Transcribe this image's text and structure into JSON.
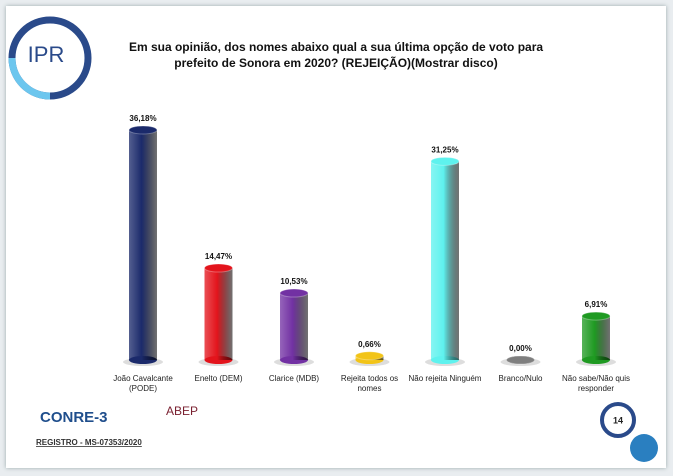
{
  "chart_data": {
    "type": "bar",
    "title": [
      "Em sua opinião, dos nomes abaixo qual a sua última opção de voto para",
      "prefeito de Sonora em 2020? (REJEIÇÃO)(Mostrar disco)"
    ],
    "categories": [
      "João Cavalcante (PODE)",
      "Enelto (DEM)",
      "Clarice (MDB)",
      "Rejeita todos os nomes",
      "Não rejeita Ninguém",
      "Branco/Nulo",
      "Não sabe/Não quis responder"
    ],
    "values": [
      36.18,
      14.47,
      10.53,
      0.66,
      31.25,
      0.0,
      6.91
    ],
    "value_labels": [
      "36,18%",
      "14,47%",
      "10,53%",
      "0,66%",
      "31,25%",
      "0,00%",
      "6,91%"
    ],
    "colors": [
      "#1b2a6b",
      "#e3141c",
      "#7231a3",
      "#f2c418",
      "#5ef2ee",
      "#7f7f7f",
      "#1f9a22"
    ]
  },
  "logo": "IPR",
  "footer": {
    "conre": "CONRE-3",
    "abep": "ABEP",
    "registro": "REGISTRO - MS-07353/2020",
    "page": "14"
  }
}
